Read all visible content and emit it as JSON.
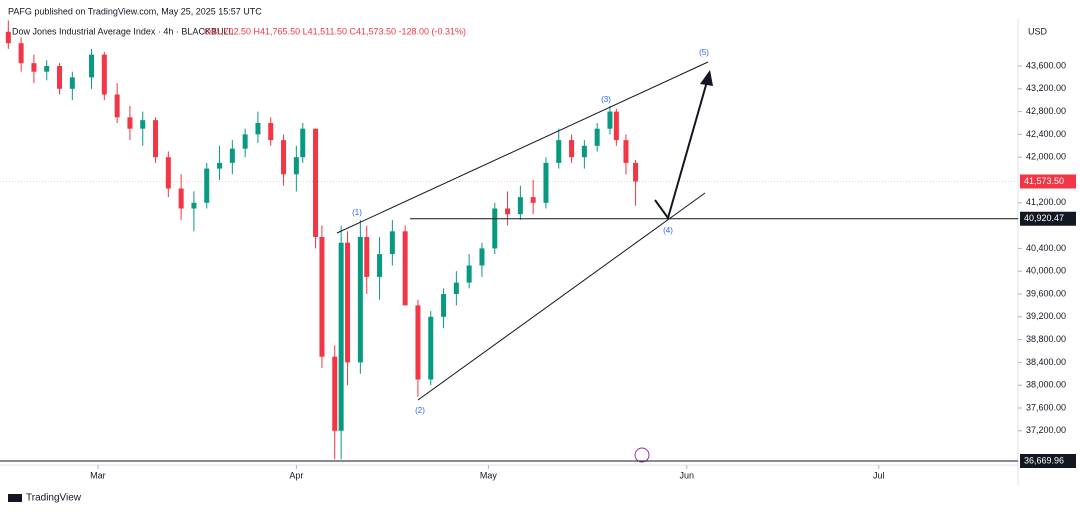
{
  "header": {
    "published": "PAFG published on TradingView.com, May 25, 2025 15:57 UTC",
    "symbol": "Dow Jones Industrial Average Index · 4h · BLACKBULL",
    "ohlc": "O41,702.50 H41,765.50 L41,511.50 C41,573.50 -128.00 (-0.31%)"
  },
  "footer": {
    "brand": "TradingView"
  },
  "chart_data": {
    "type": "candlestick",
    "currency": "USD",
    "up_color": "#089981",
    "down_color": "#f23645",
    "xlim": [
      44.7,
      203.75
    ],
    "ylim": [
      36635,
      44758
    ],
    "xticks": [
      {
        "value": 60,
        "label": "Mar"
      },
      {
        "value": 91,
        "label": "Apr"
      },
      {
        "value": 121,
        "label": "May"
      },
      {
        "value": 152,
        "label": "Jun"
      },
      {
        "value": 182,
        "label": "Jul"
      }
    ],
    "yticks": [
      {
        "value": 37200,
        "label": "37,200.00"
      },
      {
        "value": 37600,
        "label": "37,600.00"
      },
      {
        "value": 38000,
        "label": "38,000.00"
      },
      {
        "value": 38400,
        "label": "38,400.00"
      },
      {
        "value": 38800,
        "label": "38,800.00"
      },
      {
        "value": 39200,
        "label": "39,200.00"
      },
      {
        "value": 39600,
        "label": "39,600.00"
      },
      {
        "value": 40000,
        "label": "40,000.00"
      },
      {
        "value": 40400,
        "label": "40,400.00"
      },
      {
        "value": 41200,
        "label": "41,200.00"
      },
      {
        "value": 42000,
        "label": "42,000.00"
      },
      {
        "value": 42400,
        "label": "42,400.00"
      },
      {
        "value": 42800,
        "label": "42,800.00"
      },
      {
        "value": 43200,
        "label": "43,200.00"
      },
      {
        "value": 43600,
        "label": "43,600.00"
      }
    ],
    "last_price": {
      "value": 41573.5,
      "label": "41,573.50"
    },
    "price_lines": [
      {
        "value": 40920.47,
        "label": "40,920.47"
      },
      {
        "value": 36669.96,
        "label": "36,669.96"
      }
    ],
    "waves": [
      "(1)",
      "(2)",
      "(3)",
      "(4)",
      "(5)"
    ],
    "x": [
      46,
      48,
      50,
      52,
      54,
      56,
      59,
      61,
      63,
      65,
      67,
      69,
      71,
      73,
      75,
      77,
      79,
      81,
      83,
      85,
      87,
      89,
      91,
      92,
      94,
      95,
      97,
      98,
      99,
      101,
      102,
      104,
      106,
      108,
      110,
      112,
      114,
      116,
      118,
      120,
      122,
      124,
      126,
      128,
      130,
      132,
      134,
      136,
      138,
      140,
      141,
      142.5,
      144
    ],
    "open": [
      44200,
      44000,
      43650,
      43500,
      43600,
      43200,
      43400,
      43800,
      43100,
      42700,
      42500,
      42650,
      42000,
      41450,
      41100,
      41200,
      41800,
      41900,
      42150,
      42400,
      42600,
      42300,
      41700,
      42000,
      42500,
      40600,
      38500,
      37200,
      40500,
      38400,
      40600,
      39900,
      40300,
      40700,
      39400,
      38100,
      39200,
      39600,
      39800,
      40100,
      40400,
      41100,
      41000,
      41300,
      41200,
      41900,
      42300,
      42000,
      42200,
      42500,
      42800,
      42300,
      41900
    ],
    "high": [
      44400,
      44100,
      43800,
      43700,
      43650,
      43500,
      43900,
      43850,
      43300,
      42900,
      42800,
      42700,
      42100,
      41700,
      41400,
      41900,
      42200,
      42300,
      42500,
      42800,
      42700,
      42400,
      42200,
      42600,
      42500,
      40800,
      38700,
      40800,
      40700,
      40900,
      40800,
      40600,
      40900,
      40800,
      39500,
      39300,
      39700,
      40000,
      40300,
      40500,
      41200,
      41400,
      41500,
      41600,
      42000,
      42500,
      42400,
      42300,
      42600,
      42900,
      42850,
      42400,
      41950
    ],
    "low": [
      43900,
      43500,
      43300,
      43350,
      43100,
      43000,
      43200,
      43000,
      42600,
      42300,
      42200,
      41900,
      41300,
      40900,
      40700,
      41100,
      41600,
      41700,
      42000,
      42250,
      42200,
      41500,
      41400,
      41900,
      40400,
      38300,
      36700,
      36700,
      38000,
      38200,
      39600,
      39500,
      40100,
      39400,
      37800,
      38000,
      39000,
      39400,
      39700,
      39900,
      40300,
      40800,
      40900,
      41000,
      41100,
      41800,
      41900,
      41800,
      42100,
      42400,
      42200,
      41700,
      41150
    ],
    "close": [
      44000,
      43650,
      43500,
      43600,
      43200,
      43400,
      43800,
      43100,
      42700,
      42500,
      42650,
      42000,
      41450,
      41100,
      41200,
      41800,
      41900,
      42150,
      42400,
      42600,
      42300,
      41700,
      42000,
      42500,
      40600,
      38500,
      37200,
      40500,
      38400,
      40600,
      39900,
      40300,
      40700,
      39400,
      38100,
      39200,
      39600,
      39800,
      40100,
      40400,
      41100,
      41000,
      41300,
      41200,
      41900,
      42300,
      42000,
      42200,
      42500,
      42800,
      42300,
      41900,
      41573.5
    ]
  }
}
